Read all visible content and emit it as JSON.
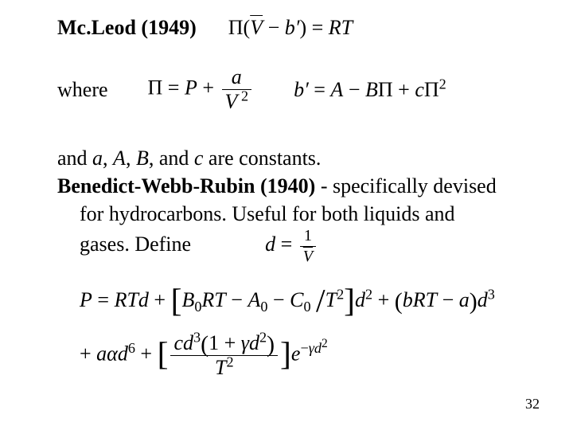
{
  "colors": {
    "text": "#000000",
    "background": "#ffffff"
  },
  "fonts": {
    "body": "Times New Roman",
    "size_pt": 20
  },
  "heading": {
    "mcleod_label": "Mc.Leod (1949)",
    "eq1_html": "Π(<span class='italic'><span class='ovl'>V</span></span> − <span class='italic'>b′</span>) = <span class='italic'>RT</span>"
  },
  "where": {
    "label": "where",
    "eq_pi_html": "Π = <span class='italic'>P</span> + <span class='frac'><span class='num'><span class='italic'>a</span></span><span class='den'><span class='italic'><span class='ovl'>V</span></span><sup> 2</sup></span></span>",
    "eq_bprime_html": "<span class='italic'>b′</span> = <span class='italic'>A</span> − <span class='italic'>B</span>Π + <span class='italic'>c</span>Π<sup>2</sup>"
  },
  "body": {
    "constants_prefix": "and ",
    "constants_vars_html": "<span class='italic'>a</span>, <span class='italic'>A</span>, <span class='italic'>B</span>",
    "constants_mid": ", and ",
    "constants_c_html": "<span class='italic'>c</span>",
    "constants_suffix": " are constants.",
    "benedict_label": "Benedict-Webb-Rubin (1940)",
    "benedict_rest": " - specifically devised",
    "line3": "for hydrocarbons. Useful for both liquids and",
    "line4_prefix": "gases. Define",
    "d_def_html": "<span class='italic'>d</span> = <span class='frac' style='font-size:0.78em'><span class='num'>1</span><span class='den'><span class='italic'><span class='ovl'>V</span></span></span></span>"
  },
  "big_eq": {
    "row1_html": "<span class='italic'>P</span> = <span class='italic'>RTd</span> + <span class='bigbr'>[</span><span class='italic'>B</span><sub>0</sub><span class='italic'>RT</span> − <span class='italic'>A</span><sub>0</sub> − <span class='italic'>C</span><sub>0</sub> <span class='bigbr'>/</span><span class='italic'>T</span><sup>2</sup><span class='bigbr'>]</span><span class='italic'>d</span><sup>2</sup> + <span class='medbr'>(</span><span class='italic'>bRT</span> − <span class='italic'>a</span><span class='medbr'>)</span><span class='italic'>d</span><sup>3</sup>",
    "row2_html": "+ <span class='italic'>aαd</span><sup>6</sup> + <span class='bigbr'>[</span><span class='frac'><span class='num'><span class='italic'>cd</span><sup>3</sup><span class='medbr'>(</span>1 + <span class='italic'>γd</span><sup>2</sup><span class='medbr'>)</span></span><span class='den'><span class='italic'>T</span><sup>2</sup></span></span><span class='bigbr'>]</span><span class='italic'>e</span><sup>−<span class='italic'>γd</span><sup style='font-size:0.85em'>2</sup></sup>"
  },
  "page_number": "32"
}
